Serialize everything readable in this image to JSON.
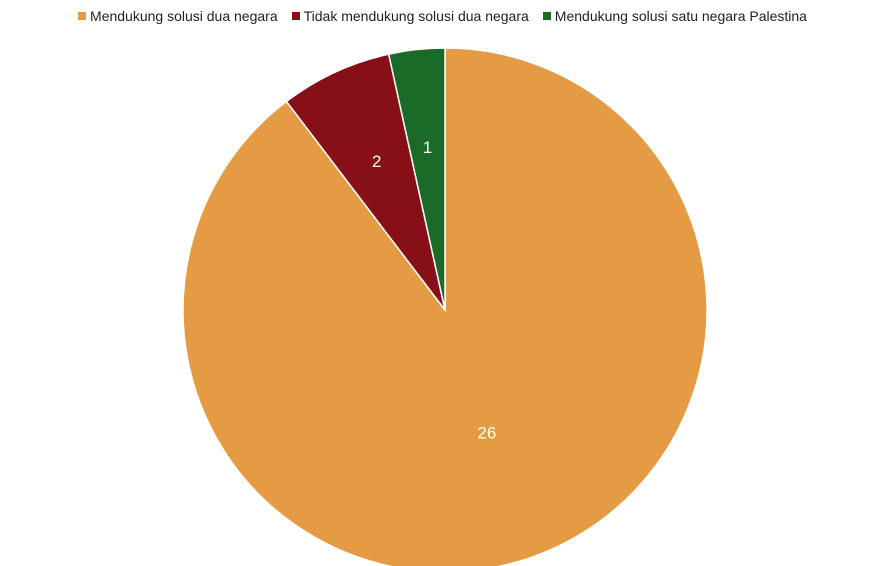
{
  "chart_data": {
    "type": "pie",
    "title": "",
    "categories": [
      "Mendukung solusi dua negara",
      "Tidak mendukung solusi dua negara",
      "Mendukung solusi satu negara Palestina"
    ],
    "values": [
      26,
      2,
      1
    ],
    "colors": [
      "#E59A44",
      "#860F18",
      "#1B6B28"
    ],
    "data_labels": [
      "26",
      "2",
      "1"
    ],
    "legend_position": "top",
    "start_angle": "top, clockwise"
  }
}
